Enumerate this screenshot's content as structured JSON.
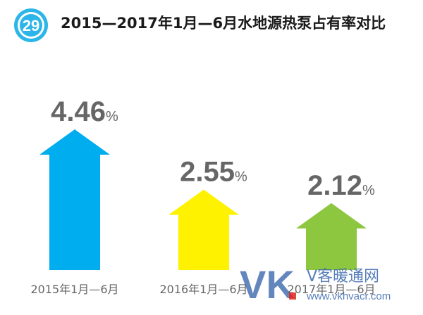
{
  "badge_number": "29",
  "title": "2015—2017年1月—6月水地源热泵占有率对比",
  "watermark": {
    "logo": "VK",
    "site_name": "V客暖通网",
    "url": "www.vkhvacr.com"
  },
  "chart_data": {
    "type": "bar",
    "title": "2015—2017年1月—6月水地源热泵占有率对比",
    "categories": [
      "2015年1月—6月",
      "2016年1月—6月",
      "2017年1月—6月"
    ],
    "values": [
      4.46,
      2.55,
      2.12
    ],
    "unit": "%",
    "colors": [
      "#00adef",
      "#fff200",
      "#8dc63f"
    ],
    "mark_shape": "arrow-up"
  }
}
